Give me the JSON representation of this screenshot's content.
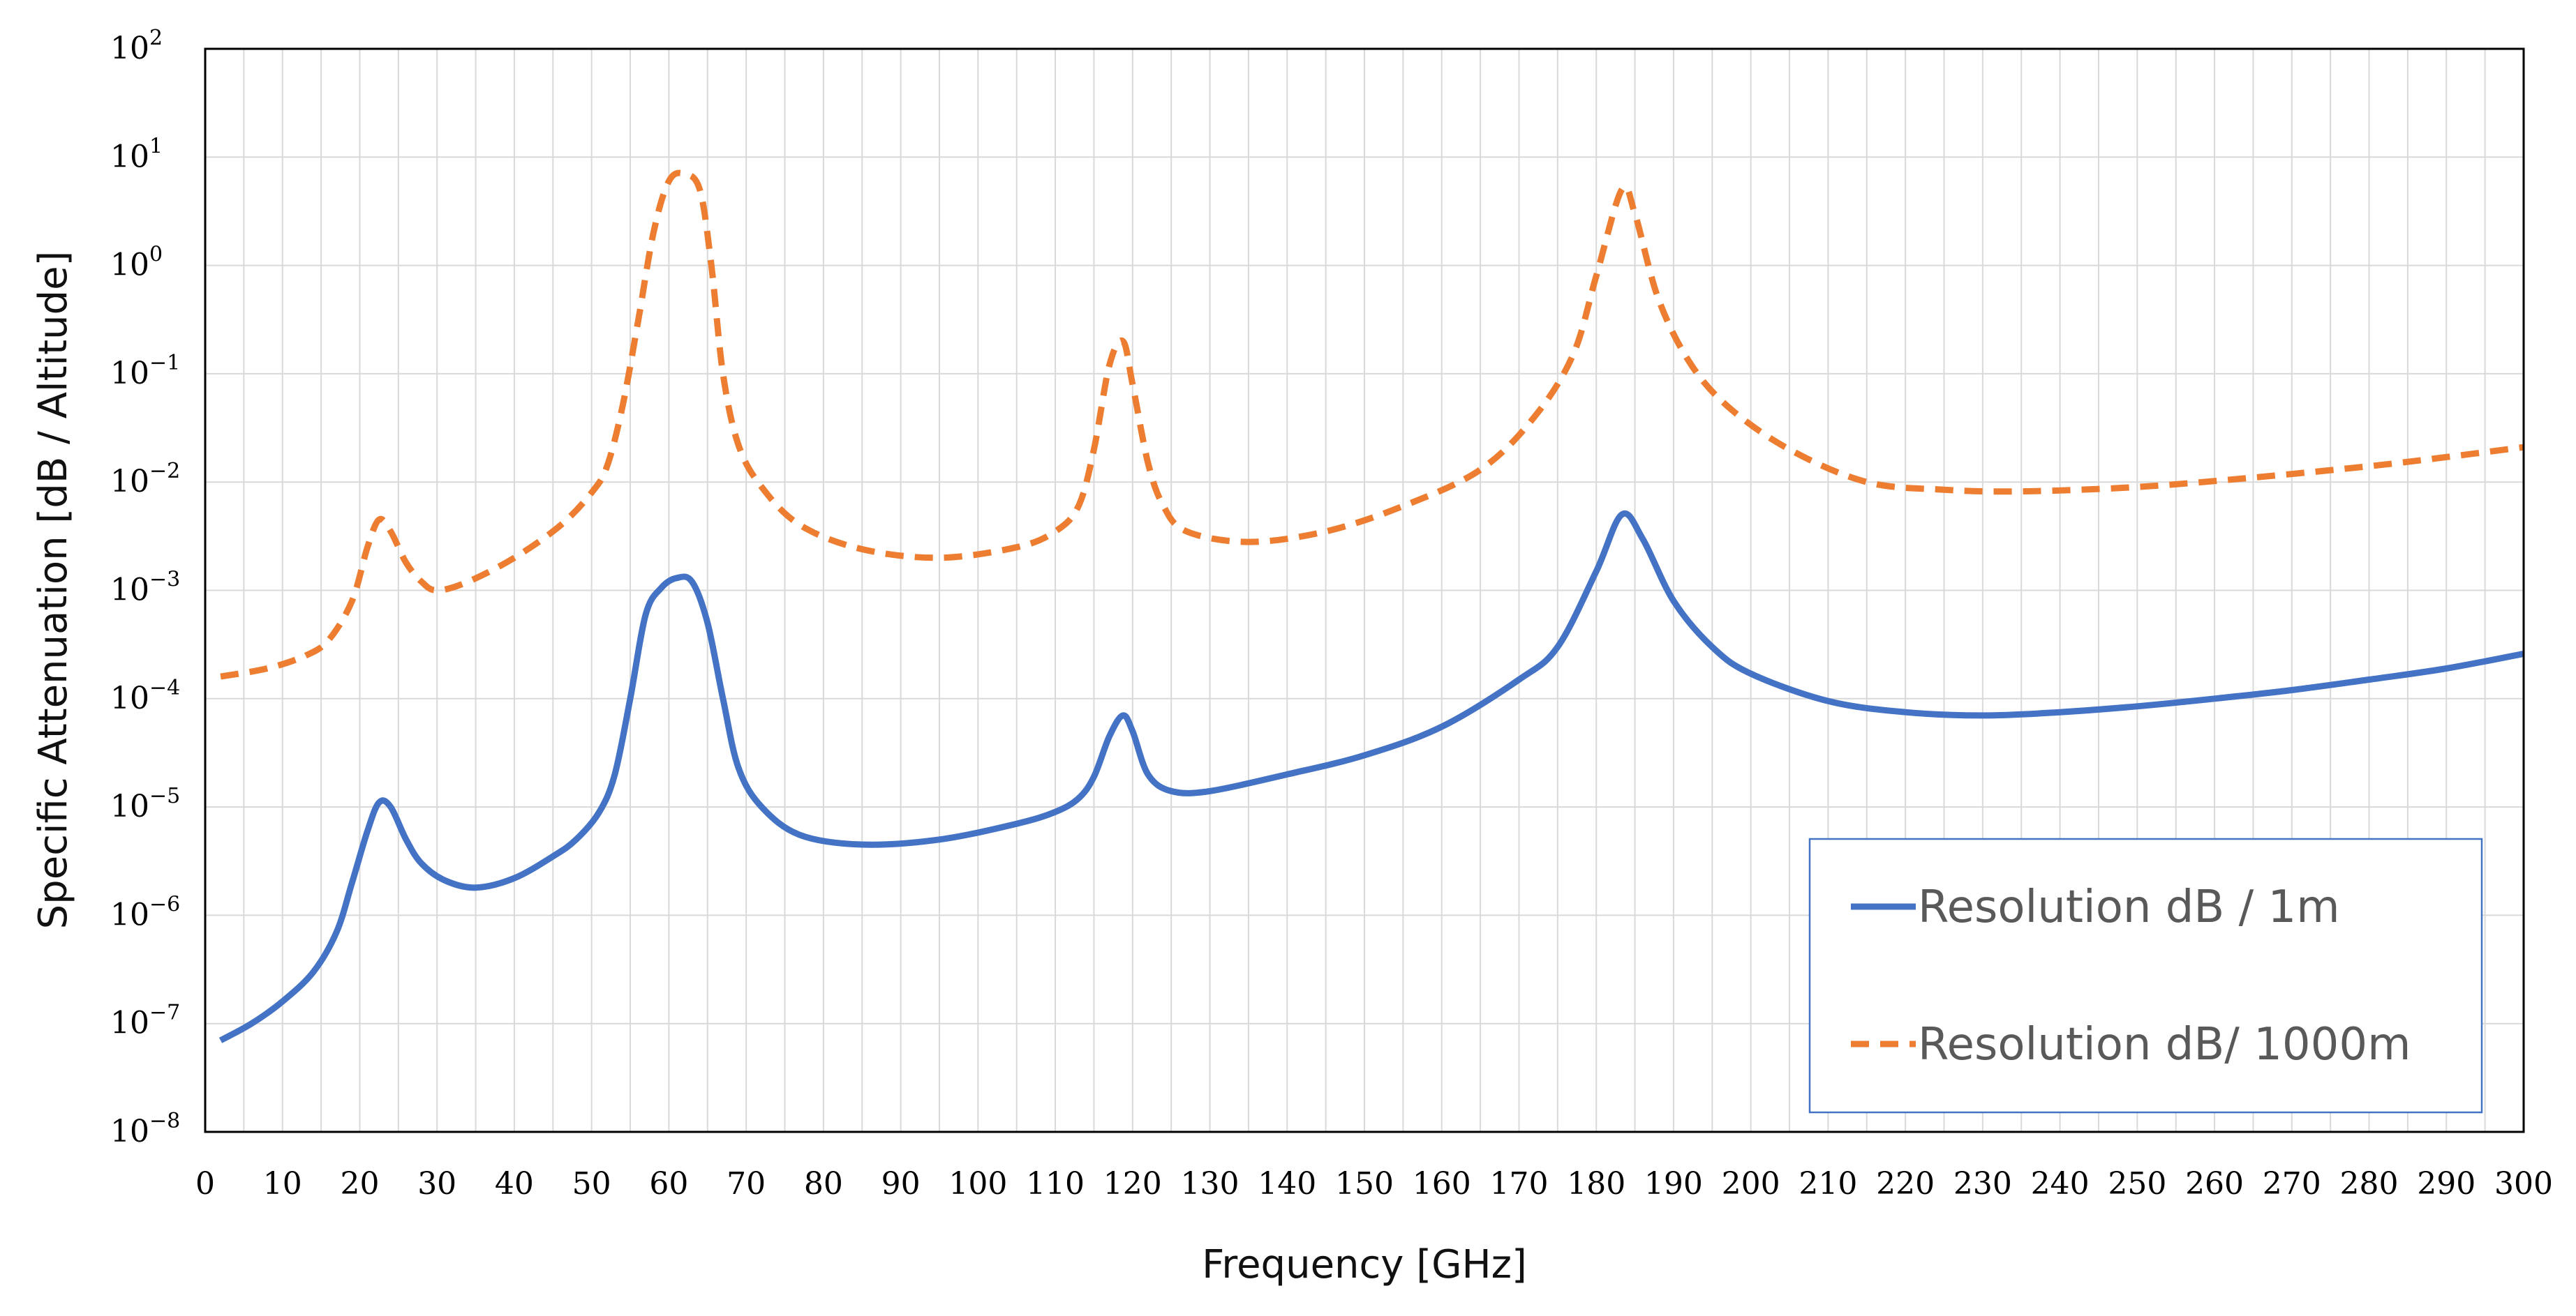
{
  "chart_data": {
    "type": "line",
    "title": "",
    "xlabel": "Frequency [GHz]",
    "ylabel": "Specific Attenuation [dB / Altitude]",
    "x_ticks": [
      "0",
      "10",
      "20",
      "30",
      "40",
      "50",
      "60",
      "70",
      "80",
      "90",
      "100",
      "110",
      "120",
      "130",
      "140",
      "150",
      "160",
      "170",
      "180",
      "190",
      "200",
      "210",
      "220",
      "230",
      "240",
      "250",
      "260",
      "270",
      "280",
      "290",
      "300"
    ],
    "y_ticks": [
      {
        "base": "10",
        "exp": "2"
      },
      {
        "base": "10",
        "exp": "1"
      },
      {
        "base": "10",
        "exp": "0"
      },
      {
        "base": "10",
        "exp": "−1"
      },
      {
        "base": "10",
        "exp": "−2"
      },
      {
        "base": "10",
        "exp": "−3"
      },
      {
        "base": "10",
        "exp": "−4"
      },
      {
        "base": "10",
        "exp": "−5"
      },
      {
        "base": "10",
        "exp": "−6"
      },
      {
        "base": "10",
        "exp": "−7"
      },
      {
        "base": "10",
        "exp": "−8"
      }
    ],
    "xlim": [
      0,
      300
    ],
    "ylim_log10": [
      -8,
      2
    ],
    "yscale": "log",
    "grid": true,
    "legend_position": "bottom-right",
    "series": [
      {
        "name": "Resolution dB / 1m",
        "color": "#4472C4",
        "style": "solid",
        "points": [
          [
            2,
            7e-08
          ],
          [
            6,
            1e-07
          ],
          [
            10,
            1.6e-07
          ],
          [
            14,
            3e-07
          ],
          [
            17,
            7e-07
          ],
          [
            19,
            2e-06
          ],
          [
            21,
            6e-06
          ],
          [
            22.5,
            1.1e-05
          ],
          [
            24,
            1e-05
          ],
          [
            26,
            5e-06
          ],
          [
            28,
            3e-06
          ],
          [
            31,
            2.1e-06
          ],
          [
            35,
            1.8e-06
          ],
          [
            40,
            2.2e-06
          ],
          [
            45,
            3.5e-06
          ],
          [
            48,
            5e-06
          ],
          [
            51,
            9e-06
          ],
          [
            53,
            2e-05
          ],
          [
            55,
            0.0001
          ],
          [
            57,
            0.0006
          ],
          [
            59,
            0.00105
          ],
          [
            61,
            0.0013
          ],
          [
            63,
            0.0012
          ],
          [
            65,
            0.0005
          ],
          [
            67,
            0.0001
          ],
          [
            69,
            2.3e-05
          ],
          [
            72,
            1e-05
          ],
          [
            77,
            5.5e-06
          ],
          [
            85,
            4.5e-06
          ],
          [
            95,
            5e-06
          ],
          [
            105,
            7e-06
          ],
          [
            110,
            9e-06
          ],
          [
            113,
            1.2e-05
          ],
          [
            115,
            1.9e-05
          ],
          [
            117,
            4.5e-05
          ],
          [
            118.75,
            7e-05
          ],
          [
            120,
            5e-05
          ],
          [
            122,
            2e-05
          ],
          [
            125,
            1.4e-05
          ],
          [
            130,
            1.4e-05
          ],
          [
            140,
            2e-05
          ],
          [
            150,
            3e-05
          ],
          [
            160,
            5.5e-05
          ],
          [
            170,
            0.00015
          ],
          [
            175,
            0.0003
          ],
          [
            180,
            0.0015
          ],
          [
            183.3,
            0.005
          ],
          [
            186,
            0.003
          ],
          [
            190,
            0.0008
          ],
          [
            195,
            0.0003
          ],
          [
            200,
            0.00017
          ],
          [
            210,
            9.5e-05
          ],
          [
            220,
            7.5e-05
          ],
          [
            230,
            7e-05
          ],
          [
            240,
            7.5e-05
          ],
          [
            250,
            8.5e-05
          ],
          [
            260,
            0.0001
          ],
          [
            270,
            0.00012
          ],
          [
            280,
            0.00015
          ],
          [
            290,
            0.00019
          ],
          [
            300,
            0.00026
          ]
        ]
      },
      {
        "name": "Resolution dB/ 1000m",
        "color": "#ED7D31",
        "style": "dashed",
        "points": [
          [
            2,
            0.00016
          ],
          [
            8,
            0.00019
          ],
          [
            13,
            0.00025
          ],
          [
            16,
            0.00035
          ],
          [
            19,
            0.0008
          ],
          [
            21,
            0.0025
          ],
          [
            22.5,
            0.0045
          ],
          [
            24,
            0.0035
          ],
          [
            26,
            0.0018
          ],
          [
            28,
            0.0012
          ],
          [
            30,
            0.001
          ],
          [
            34,
            0.0012
          ],
          [
            40,
            0.002
          ],
          [
            46,
            0.004
          ],
          [
            50,
            0.008
          ],
          [
            52,
            0.014
          ],
          [
            54,
            0.05
          ],
          [
            56,
            0.3
          ],
          [
            58,
            2
          ],
          [
            60,
            6
          ],
          [
            62,
            7
          ],
          [
            64,
            5
          ],
          [
            65.5,
            1
          ],
          [
            67,
            0.1
          ],
          [
            69,
            0.022
          ],
          [
            72,
            0.009
          ],
          [
            77,
            0.004
          ],
          [
            85,
            0.0024
          ],
          [
            95,
            0.002
          ],
          [
            105,
            0.0025
          ],
          [
            110,
            0.0035
          ],
          [
            113,
            0.006
          ],
          [
            115,
            0.02
          ],
          [
            117,
            0.12
          ],
          [
            118.75,
            0.2
          ],
          [
            120,
            0.08
          ],
          [
            122,
            0.015
          ],
          [
            124,
            0.006
          ],
          [
            127,
            0.0035
          ],
          [
            135,
            0.0028
          ],
          [
            145,
            0.0035
          ],
          [
            155,
            0.006
          ],
          [
            165,
            0.013
          ],
          [
            172,
            0.04
          ],
          [
            177,
            0.15
          ],
          [
            180,
            0.8
          ],
          [
            183.3,
            5
          ],
          [
            185,
            3
          ],
          [
            188,
            0.5
          ],
          [
            192,
            0.13
          ],
          [
            197,
            0.05
          ],
          [
            205,
            0.02
          ],
          [
            215,
            0.01
          ],
          [
            225,
            0.0085
          ],
          [
            235,
            0.0082
          ],
          [
            250,
            0.009
          ],
          [
            265,
            0.011
          ],
          [
            280,
            0.014
          ],
          [
            290,
            0.017
          ],
          [
            300,
            0.021
          ]
        ]
      }
    ]
  }
}
